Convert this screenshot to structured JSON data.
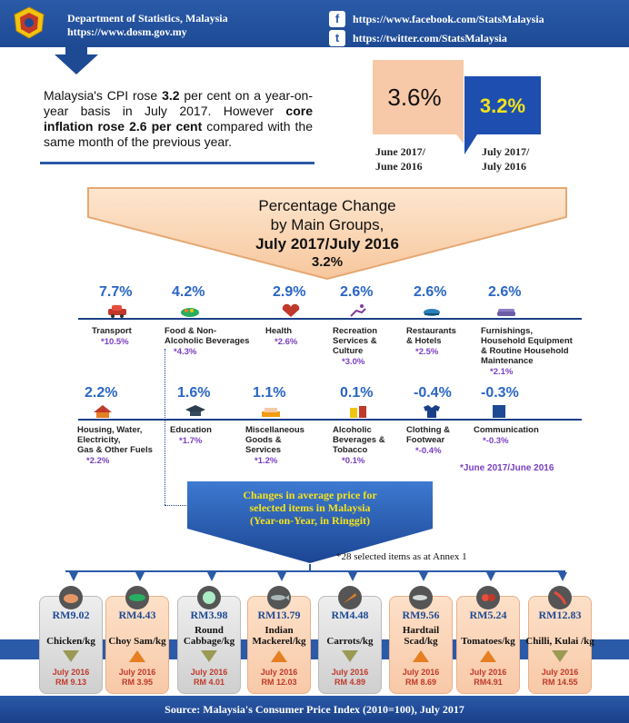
{
  "header": {
    "org_name": "Department  of Statistics, Malaysia",
    "org_url": "https://www.dosm.gov.my",
    "facebook_url": "https://www.facebook.com/StatsMalaysia",
    "twitter_url": "https://twitter.com/StatsMalaysia"
  },
  "summary": {
    "p1": "Malaysia's CPI rose ",
    "p1_bold": "3.2",
    "p2": " per cent on a year-on-year basis in July 2017. However ",
    "p2_bold": "core inflation rose 2.6 per cent",
    "p3": " compared with the same month of the previous year."
  },
  "rates": [
    {
      "value": "3.6%",
      "line1": "June 2017/",
      "line2": "June 2016",
      "color": "#f8c9a8"
    },
    {
      "value": "3.2%",
      "line1": "July 2017/",
      "line2": "July 2016",
      "color": "#1e4fb0"
    }
  ],
  "banner": {
    "line1": "Percentage Change",
    "line2": "by  Main Groups,",
    "line3": "July 2017/July 2016",
    "line4": "3.2%"
  },
  "groups_row1": [
    {
      "pct": "7.7%",
      "name": "Transport",
      "prev": "*10.5%",
      "icon": "car-icon"
    },
    {
      "pct": "4.2%",
      "name": "Food &  Non-\nAlcoholic Beverages",
      "prev": "*4.3%",
      "icon": "food-icon"
    },
    {
      "pct": "2.9%",
      "name": "Health",
      "prev": "*2.6%",
      "icon": "heart-icon"
    },
    {
      "pct": "2.6%",
      "name": "Recreation\nServices &\nCulture",
      "prev": "*3.0%",
      "icon": "recreation-icon"
    },
    {
      "pct": "2.6%",
      "name": "Restaurants\n& Hotels",
      "prev": "*2.5%",
      "icon": "restaurant-icon"
    },
    {
      "pct": "2.6%",
      "name": "Furnishings,\nHousehold Equipment\n& Routine Household\nMaintenance",
      "prev": "*2.1%",
      "icon": "sofa-icon"
    }
  ],
  "groups_row2": [
    {
      "pct": "2.2%",
      "name": "Housing, Water,\nElectricity,\nGas & Other Fuels",
      "prev": "*2.2%",
      "icon": "house-icon"
    },
    {
      "pct": "1.6%",
      "name": "Education",
      "prev": "*1.7%",
      "icon": "graduation-cap-icon"
    },
    {
      "pct": "1.1%",
      "name": "Miscellaneous\nGoods &\nServices",
      "prev": "*1.2%",
      "icon": "misc-goods-icon"
    },
    {
      "pct": "0.1%",
      "name": "Alcoholic\nBeverages &\nTobacco",
      "prev": "*0.1%",
      "icon": "beverage-icon"
    },
    {
      "pct": "-0.4%",
      "name": "Clothing  &\nFootwear",
      "prev": "*-0.4%",
      "icon": "clothing-icon"
    },
    {
      "pct": "-0.3%",
      "name": "Communication",
      "prev": "*-0.3%",
      "icon": "communication-icon"
    }
  ],
  "groups_note": "*June 2017/June 2016",
  "price_banner": {
    "line1": "Changes in average price for",
    "line2": "selected items in Malaysia",
    "line3": "(Year-on-Year, in Ringgit)"
  },
  "items_note": "*28 selected items as at Annex 1",
  "items": [
    {
      "price": "RM9.02",
      "name": "Chicken/kg",
      "prev1": "July 2016",
      "prev2": "RM 9.13",
      "dir": "down",
      "style": "grey",
      "icon": "chicken-icon"
    },
    {
      "price": "RM4.43",
      "name": "Choy Sam/kg",
      "prev1": "July 2016",
      "prev2": "RM 3.95",
      "dir": "up",
      "style": "peach",
      "icon": "choy-sam-icon"
    },
    {
      "price": "RM3.98",
      "name": "Round\nCabbage/kg",
      "prev1": "July 2016",
      "prev2": "RM 4.01",
      "dir": "down",
      "style": "grey",
      "icon": "cabbage-icon"
    },
    {
      "price": "RM13.79",
      "name": "Indian\nMackerel/kg",
      "prev1": "July 2016",
      "prev2": "RM 12.03",
      "dir": "up",
      "style": "peach",
      "icon": "mackerel-icon"
    },
    {
      "price": "RM4.48",
      "name": "Carrots/kg",
      "prev1": "July 2016",
      "prev2": "RM 4.89",
      "dir": "down",
      "style": "grey",
      "icon": "carrot-icon"
    },
    {
      "price": "RM9.56",
      "name": "Hardtail\nScad/kg",
      "prev1": "July 2016",
      "prev2": "RM 8.69",
      "dir": "up",
      "style": "peach",
      "icon": "scad-icon"
    },
    {
      "price": "RM5.24",
      "name": "Tomatoes/kg",
      "prev1": "July 2016",
      "prev2": "RM4.91",
      "dir": "up",
      "style": "peach",
      "icon": "tomato-icon"
    },
    {
      "price": "RM12.83",
      "name": "Chilli, Kulai /kg",
      "prev1": "July 2016",
      "prev2": "RM 14.55",
      "dir": "down",
      "style": "peach",
      "icon": "chilli-icon"
    }
  ],
  "footer": "Source: Malaysia's Consumer Price Index (2010=100), July 2017"
}
